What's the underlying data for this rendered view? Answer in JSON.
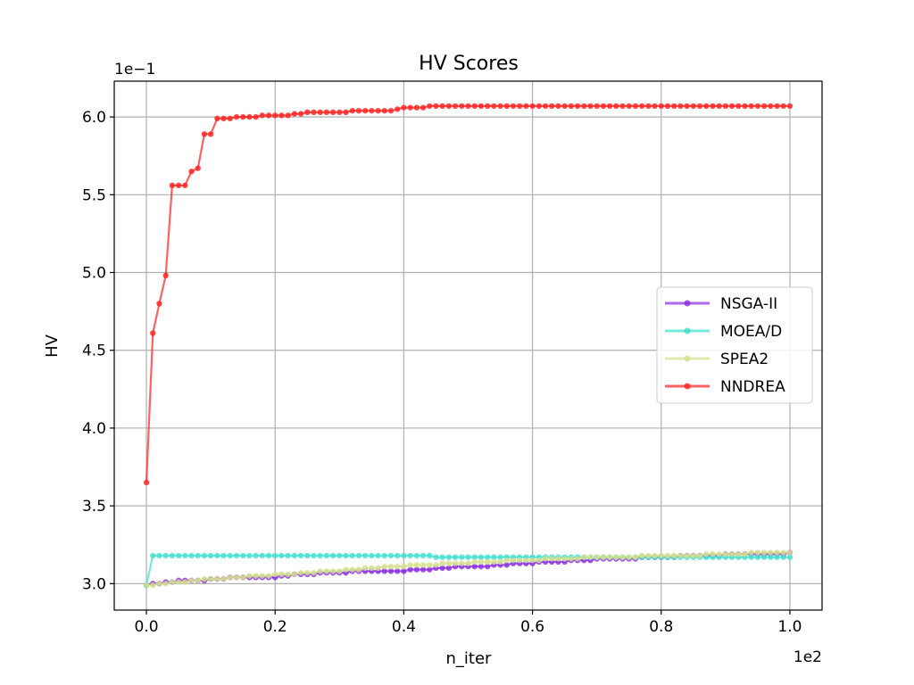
{
  "chart_data": {
    "type": "line",
    "title": "HV Scores",
    "xlabel": "n_iter",
    "ylabel": "HV",
    "x_offset_label": "1e2",
    "y_offset_label": "1e−1",
    "xlim": [
      -0.05,
      1.05
    ],
    "ylim": [
      2.83,
      6.23
    ],
    "xticks": [
      0.0,
      0.2,
      0.4,
      0.6,
      0.8,
      1.0
    ],
    "xtick_labels": [
      "0.0",
      "0.2",
      "0.4",
      "0.6",
      "0.8",
      "1.0"
    ],
    "yticks": [
      3.0,
      3.5,
      4.0,
      4.5,
      5.0,
      5.5,
      6.0
    ],
    "ytick_labels": [
      "3.0",
      "3.5",
      "4.0",
      "4.5",
      "5.0",
      "5.5",
      "6.0"
    ],
    "grid": true,
    "legend_position": "center-right",
    "x_start": 0.0,
    "x_step": 0.01,
    "series": [
      {
        "name": "NSGA-II",
        "color": "#8a2be2",
        "values": [
          2.99,
          3.0,
          3.0,
          3.01,
          3.01,
          3.02,
          3.02,
          3.02,
          3.02,
          3.02,
          3.03,
          3.03,
          3.03,
          3.04,
          3.04,
          3.04,
          3.04,
          3.04,
          3.04,
          3.04,
          3.04,
          3.05,
          3.05,
          3.06,
          3.06,
          3.06,
          3.06,
          3.07,
          3.07,
          3.07,
          3.07,
          3.07,
          3.08,
          3.08,
          3.08,
          3.08,
          3.08,
          3.08,
          3.08,
          3.08,
          3.08,
          3.09,
          3.09,
          3.09,
          3.09,
          3.1,
          3.1,
          3.1,
          3.11,
          3.11,
          3.11,
          3.11,
          3.11,
          3.11,
          3.12,
          3.12,
          3.12,
          3.13,
          3.13,
          3.13,
          3.13,
          3.14,
          3.14,
          3.14,
          3.14,
          3.14,
          3.15,
          3.15,
          3.15,
          3.15,
          3.16,
          3.16,
          3.16,
          3.16,
          3.16,
          3.16,
          3.16,
          3.17,
          3.17,
          3.17,
          3.17,
          3.17,
          3.17,
          3.18,
          3.18,
          3.18,
          3.18,
          3.18,
          3.18,
          3.18,
          3.19,
          3.19,
          3.19,
          3.19,
          3.19,
          3.19,
          3.19,
          3.19,
          3.19,
          3.19,
          3.2
        ]
      },
      {
        "name": "MOEA/D",
        "color": "#40e0d0",
        "values": [
          2.99,
          3.18,
          3.18,
          3.18,
          3.18,
          3.18,
          3.18,
          3.18,
          3.18,
          3.18,
          3.18,
          3.18,
          3.18,
          3.18,
          3.18,
          3.18,
          3.18,
          3.18,
          3.18,
          3.18,
          3.18,
          3.18,
          3.18,
          3.18,
          3.18,
          3.18,
          3.18,
          3.18,
          3.18,
          3.18,
          3.18,
          3.18,
          3.18,
          3.18,
          3.18,
          3.18,
          3.18,
          3.18,
          3.18,
          3.18,
          3.18,
          3.18,
          3.18,
          3.18,
          3.18,
          3.17,
          3.17,
          3.17,
          3.17,
          3.17,
          3.17,
          3.17,
          3.17,
          3.17,
          3.17,
          3.17,
          3.17,
          3.17,
          3.17,
          3.17,
          3.17,
          3.17,
          3.17,
          3.17,
          3.17,
          3.17,
          3.17,
          3.17,
          3.17,
          3.17,
          3.17,
          3.17,
          3.17,
          3.17,
          3.17,
          3.17,
          3.17,
          3.17,
          3.17,
          3.17,
          3.17,
          3.17,
          3.17,
          3.17,
          3.17,
          3.17,
          3.17,
          3.17,
          3.17,
          3.17,
          3.17,
          3.17,
          3.17,
          3.17,
          3.17,
          3.17,
          3.17,
          3.17,
          3.17,
          3.17,
          3.17
        ]
      },
      {
        "name": "SPEA2",
        "color": "#d4e08f",
        "values": [
          2.99,
          2.99,
          3.0,
          3.0,
          3.01,
          3.01,
          3.01,
          3.02,
          3.02,
          3.03,
          3.03,
          3.03,
          3.03,
          3.04,
          3.04,
          3.04,
          3.05,
          3.05,
          3.05,
          3.05,
          3.06,
          3.06,
          3.06,
          3.06,
          3.07,
          3.07,
          3.07,
          3.08,
          3.08,
          3.08,
          3.08,
          3.09,
          3.09,
          3.09,
          3.1,
          3.1,
          3.1,
          3.11,
          3.11,
          3.11,
          3.11,
          3.12,
          3.12,
          3.12,
          3.12,
          3.12,
          3.13,
          3.13,
          3.13,
          3.13,
          3.13,
          3.14,
          3.14,
          3.14,
          3.14,
          3.14,
          3.15,
          3.15,
          3.15,
          3.15,
          3.15,
          3.15,
          3.16,
          3.16,
          3.16,
          3.16,
          3.16,
          3.16,
          3.17,
          3.17,
          3.17,
          3.17,
          3.17,
          3.17,
          3.17,
          3.17,
          3.17,
          3.18,
          3.18,
          3.18,
          3.18,
          3.18,
          3.18,
          3.18,
          3.18,
          3.18,
          3.18,
          3.19,
          3.19,
          3.19,
          3.19,
          3.19,
          3.19,
          3.19,
          3.2,
          3.2,
          3.2,
          3.2,
          3.2,
          3.2,
          3.2
        ]
      },
      {
        "name": "NNDREA",
        "color": "#ff2020",
        "values": [
          3.65,
          4.61,
          4.8,
          4.98,
          5.56,
          5.56,
          5.56,
          5.65,
          5.67,
          5.89,
          5.89,
          5.99,
          5.99,
          5.99,
          6.0,
          6.0,
          6.0,
          6.0,
          6.01,
          6.01,
          6.01,
          6.01,
          6.01,
          6.02,
          6.02,
          6.03,
          6.03,
          6.03,
          6.03,
          6.03,
          6.03,
          6.03,
          6.04,
          6.04,
          6.04,
          6.04,
          6.04,
          6.04,
          6.04,
          6.05,
          6.06,
          6.06,
          6.06,
          6.06,
          6.07,
          6.07,
          6.07,
          6.07,
          6.07,
          6.07,
          6.07,
          6.07,
          6.07,
          6.07,
          6.07,
          6.07,
          6.07,
          6.07,
          6.07,
          6.07,
          6.07,
          6.07,
          6.07,
          6.07,
          6.07,
          6.07,
          6.07,
          6.07,
          6.07,
          6.07,
          6.07,
          6.07,
          6.07,
          6.07,
          6.07,
          6.07,
          6.07,
          6.07,
          6.07,
          6.07,
          6.07,
          6.07,
          6.07,
          6.07,
          6.07,
          6.07,
          6.07,
          6.07,
          6.07,
          6.07,
          6.07,
          6.07,
          6.07,
          6.07,
          6.07,
          6.07,
          6.07,
          6.07,
          6.07,
          6.07,
          6.07
        ]
      }
    ]
  }
}
